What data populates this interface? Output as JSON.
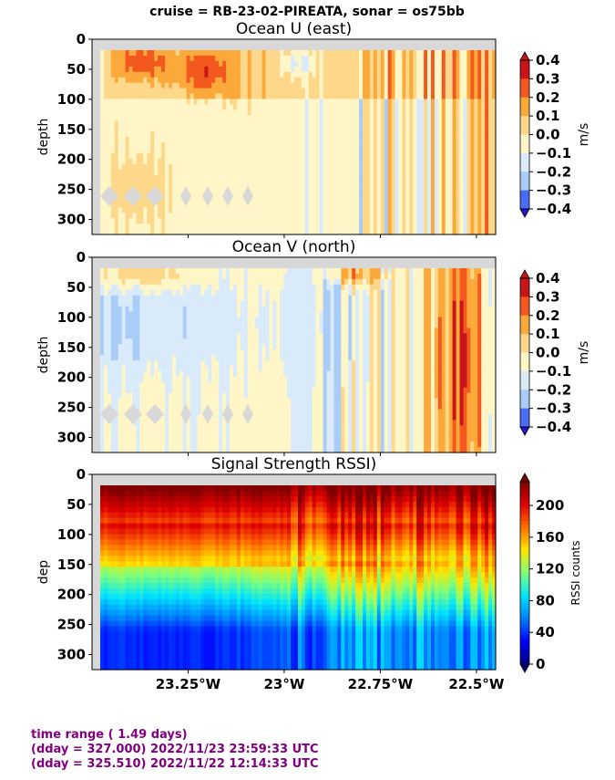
{
  "suptitle": "cruise = RB-23-02-PIREATA,  sonar = os75bb",
  "footer": {
    "line1": "time range ( 1.49 days)",
    "line2": "(dday = 327.000) 2022/11/23 23:59:33 UTC",
    "line3": "(dday = 325.510) 2022/11/22 12:14:33 UTC"
  },
  "x_ticks": [
    {
      "value": -23.25,
      "label": "23.25°W"
    },
    {
      "value": -23.0,
      "label": "23°W"
    },
    {
      "value": -22.75,
      "label": "22.75°W"
    },
    {
      "value": -22.5,
      "label": "22.5°W"
    }
  ],
  "y_ticks": [
    0,
    50,
    100,
    150,
    200,
    250,
    300
  ],
  "colors": {
    "missing": "#d8d8d8",
    "diverging": [
      "#2b0fd8",
      "#4a6cf0",
      "#a9cdf7",
      "#d9ebfb",
      "#fff6c8",
      "#fed88a",
      "#fca93b",
      "#f3591e",
      "#c8151b"
    ],
    "rssi": [
      "#00007f",
      "#0000ff",
      "#0080ff",
      "#00e5ff",
      "#7dff7a",
      "#ffe600",
      "#ff7000",
      "#e00000",
      "#7f0000"
    ]
  },
  "chart_data": [
    {
      "type": "heatmap",
      "title": "Ocean U (east)",
      "ylabel": "depth",
      "xlim": [
        -23.5,
        -22.45
      ],
      "ylim": [
        325,
        0
      ],
      "colorbar": {
        "label": "m/s",
        "min": -0.4,
        "max": 0.4,
        "ticks": [
          "0.4",
          "0.3",
          "0.2",
          "0.1",
          "0.0",
          "−0.1",
          "−0.2",
          "−0.3",
          "−0.4"
        ]
      }
    },
    {
      "type": "heatmap",
      "title": "Ocean V (north)",
      "ylabel": "depth",
      "xlim": [
        -23.5,
        -22.45
      ],
      "ylim": [
        325,
        0
      ],
      "colorbar": {
        "label": "m/s",
        "min": -0.4,
        "max": 0.4,
        "ticks": [
          "0.4",
          "0.3",
          "0.2",
          "0.1",
          "0.0",
          "−0.1",
          "−0.2",
          "−0.3",
          "−0.4"
        ]
      }
    },
    {
      "type": "heatmap",
      "title": "Signal Strength RSSI)",
      "ylabel": "dep",
      "xlim": [
        -23.5,
        -22.45
      ],
      "ylim": [
        325,
        0
      ],
      "colorbar": {
        "label": "RSSI counts",
        "min": 0,
        "max": 230,
        "ticks": [
          "200",
          "160",
          "120",
          "80",
          "40",
          "0"
        ]
      }
    }
  ]
}
